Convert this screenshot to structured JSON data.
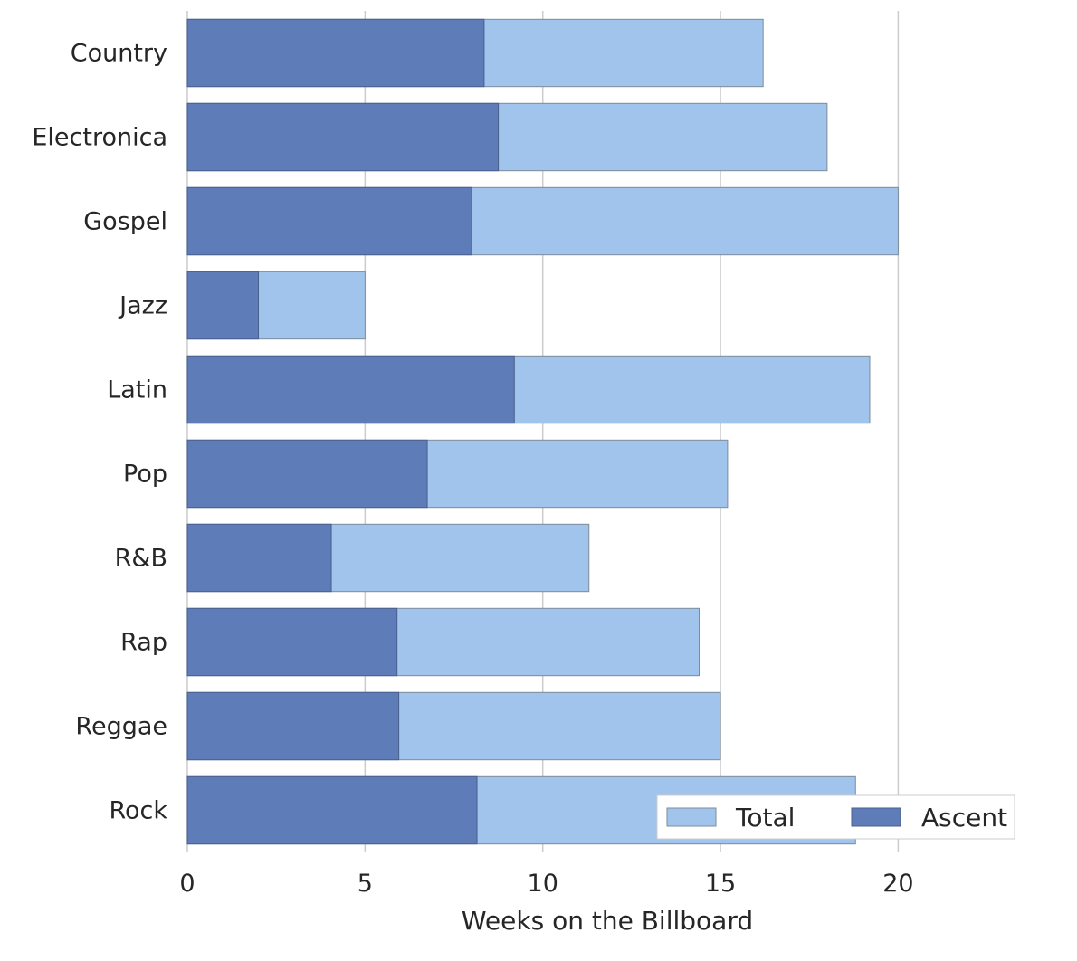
{
  "chart_data": {
    "type": "bar",
    "orientation": "horizontal",
    "categories": [
      "Country",
      "Electronica",
      "Gospel",
      "Jazz",
      "Latin",
      "Pop",
      "R&B",
      "Rap",
      "Reggae",
      "Rock"
    ],
    "series": [
      {
        "name": "Total",
        "values": [
          16.2,
          18.0,
          20.0,
          5.0,
          19.2,
          15.2,
          11.3,
          14.4,
          15.0,
          18.8
        ],
        "color": "#a1c4ed"
      },
      {
        "name": "Ascent",
        "values": [
          8.35,
          8.75,
          8.0,
          2.0,
          9.2,
          6.75,
          4.05,
          5.9,
          5.95,
          8.15
        ],
        "color": "#5d7cb8"
      }
    ],
    "xlabel": "Weeks on the Billboard",
    "ylabel": "",
    "xlim": [
      0,
      23.3
    ],
    "xticks": [
      "0",
      "5",
      "10",
      "15",
      "20"
    ],
    "grid": "vertical",
    "legend": {
      "position": "bottom-right",
      "entries": [
        "Total",
        "Ascent"
      ]
    }
  }
}
